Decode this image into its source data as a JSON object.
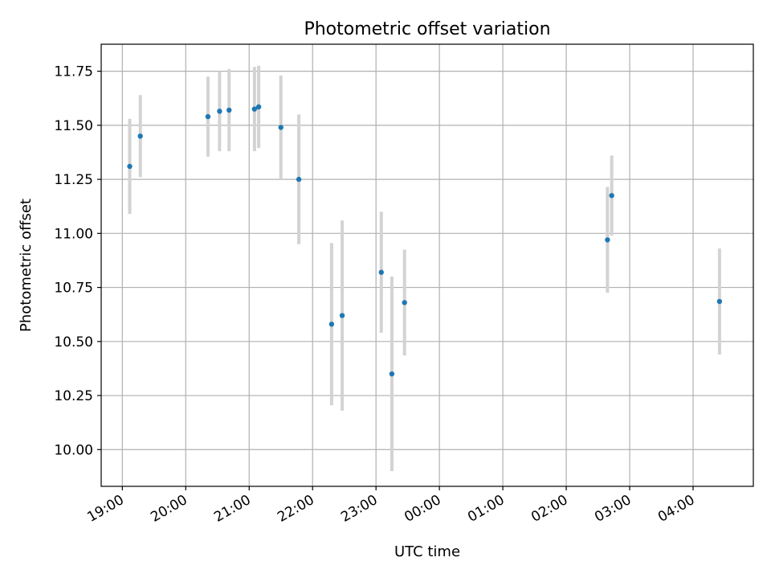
{
  "chart_data": {
    "type": "scatter",
    "title": "Photometric offset variation",
    "xlabel": "UTC time",
    "ylabel": "Photometric offset",
    "xlim": [
      "18:40",
      "04:57"
    ],
    "ylim": [
      9.83,
      11.875
    ],
    "x_ticks": [
      "19:00",
      "20:00",
      "21:00",
      "22:00",
      "23:00",
      "00:00",
      "01:00",
      "02:00",
      "03:00",
      "04:00"
    ],
    "y_ticks": [
      "10.00",
      "10.25",
      "10.50",
      "10.75",
      "11.00",
      "11.25",
      "11.50",
      "11.75"
    ],
    "grid": true,
    "marker_color": "#1f77b4",
    "errorbar_color": "#d3d3d3",
    "series": [
      {
        "x": [
          "19:07",
          "19:17",
          "20:21",
          "20:32",
          "20:41",
          "21:05",
          "21:09",
          "21:30",
          "21:47",
          "22:18",
          "22:28",
          "23:05",
          "23:15",
          "23:27",
          "02:39",
          "02:43",
          "04:25"
        ],
        "y": [
          11.31,
          11.45,
          11.54,
          11.565,
          11.57,
          11.575,
          11.585,
          11.49,
          11.25,
          10.58,
          10.62,
          10.82,
          10.35,
          10.68,
          10.97,
          11.175,
          10.685
        ],
        "yerr": [
          0.22,
          0.19,
          0.185,
          0.185,
          0.19,
          0.195,
          0.19,
          0.24,
          0.3,
          0.375,
          0.44,
          0.28,
          0.45,
          0.245,
          0.245,
          0.185,
          0.245
        ]
      }
    ]
  }
}
